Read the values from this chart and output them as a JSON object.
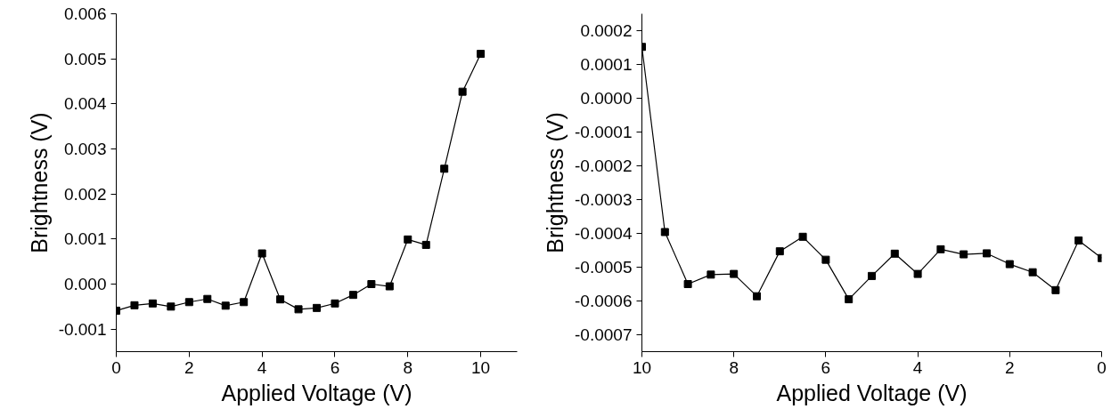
{
  "chart_data": [
    {
      "type": "line",
      "xlabel": "Applied Voltage (V)",
      "ylabel": "Brightness (V)",
      "marker": "square",
      "line_style": "solid",
      "x": [
        0,
        0.5,
        1,
        1.5,
        2,
        2.5,
        3,
        3.5,
        4,
        4.5,
        5,
        5.5,
        6,
        6.5,
        7,
        7.5,
        8,
        8.5,
        9,
        9.5,
        10
      ],
      "series": [
        {
          "color": "#000000",
          "values": [
            -0.00059,
            -0.00047,
            -0.00043,
            -0.0005,
            -0.0004,
            -0.00033,
            -0.00048,
            -0.0004,
            0.00068,
            -0.00034,
            -0.00056,
            -0.00053,
            -0.00043,
            -0.00024,
            0.0,
            -5e-05,
            0.00099,
            0.00087,
            0.00256,
            0.00427,
            0.00511
          ]
        }
      ],
      "xlim": [
        0,
        11
      ],
      "ylim": [
        -0.0015,
        0.006
      ],
      "xticks": [
        0,
        2,
        4,
        6,
        8,
        10
      ],
      "yticks": [
        {
          "value": -0.001,
          "label": "-0.001"
        },
        {
          "value": 0,
          "label": "0.000"
        },
        {
          "value": 0.001,
          "label": "0.001"
        },
        {
          "value": 0.002,
          "label": "0.002"
        },
        {
          "value": 0.003,
          "label": "0.003"
        },
        {
          "value": 0.004,
          "label": "0.004"
        },
        {
          "value": 0.005,
          "label": "0.005"
        },
        {
          "value": 0.006,
          "label": "0.006"
        }
      ]
    },
    {
      "type": "line",
      "xlabel": "Applied Voltage (V)",
      "ylabel": "Brightness (V)",
      "marker": "square",
      "line_style": "solid",
      "x": [
        10,
        9.5,
        9,
        8.5,
        8,
        7.5,
        7,
        6.5,
        6,
        5.5,
        5,
        4.5,
        4,
        3.5,
        3,
        2.5,
        2,
        1.5,
        1,
        0.5,
        0
      ],
      "series": [
        {
          "color": "#000000",
          "values": [
            0.000152,
            -0.000396,
            -0.00055,
            -0.000522,
            -0.00052,
            -0.000586,
            -0.000453,
            -0.00041,
            -0.000478,
            -0.000595,
            -0.000526,
            -0.00046,
            -0.00052,
            -0.000447,
            -0.000462,
            -0.000459,
            -0.000491,
            -0.000515,
            -0.000568,
            -0.000421,
            -0.000473
          ]
        }
      ],
      "xlim": [
        10,
        0
      ],
      "ylim": [
        -0.00075,
        0.00025
      ],
      "xticks": [
        10,
        8,
        6,
        4,
        2,
        0
      ],
      "yticks": [
        {
          "value": -0.0007,
          "label": "-0.0007"
        },
        {
          "value": -0.0006,
          "label": "-0.0006"
        },
        {
          "value": -0.0005,
          "label": "-0.0005"
        },
        {
          "value": -0.0004,
          "label": "-0.0004"
        },
        {
          "value": -0.0003,
          "label": "-0.0003"
        },
        {
          "value": -0.0002,
          "label": "-0.0002"
        },
        {
          "value": -0.0001,
          "label": "-0.0001"
        },
        {
          "value": 0,
          "label": "0.0000"
        },
        {
          "value": 0.0001,
          "label": "0.0001"
        },
        {
          "value": 0.0002,
          "label": "0.0002"
        }
      ]
    }
  ]
}
